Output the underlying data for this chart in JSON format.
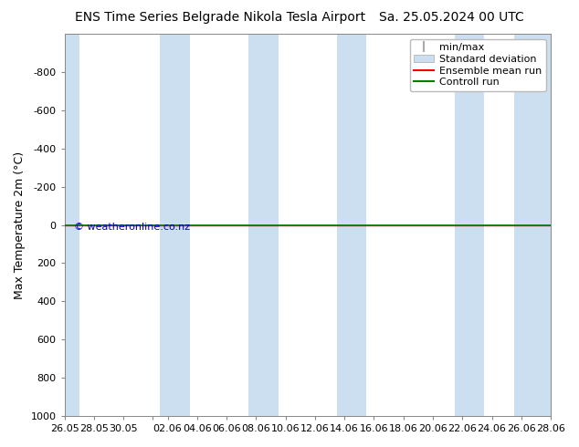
{
  "title_left": "ENS Time Series Belgrade Nikola Tesla Airport",
  "title_right": "Sa. 25.05.2024 00 UTC",
  "ylabel": "Max Temperature 2m (°C)",
  "ylim_top": -1000,
  "ylim_bottom": 1000,
  "yticks": [
    -800,
    -600,
    -400,
    -200,
    0,
    200,
    400,
    600,
    800,
    1000
  ],
  "x_tick_labels": [
    "26.05",
    "28.05",
    "30.05",
    "",
    "02.06",
    "04.06",
    "06.06",
    "08.06",
    "10.06",
    "12.06",
    "14.06",
    "16.06",
    "18.06",
    "20.06",
    "22.06",
    "24.06",
    "26.06",
    "28.06"
  ],
  "tick_positions": [
    0,
    2,
    4,
    6,
    7,
    9,
    11,
    13,
    15,
    17,
    19,
    21,
    23,
    25,
    27,
    29,
    31,
    33
  ],
  "x_min": 0,
  "x_max": 33,
  "background_color": "#ffffff",
  "plot_bg_color": "#ffffff",
  "shade_color": "#ccdff0",
  "shade_bands": [
    [
      0,
      1.0
    ],
    [
      6.5,
      8.5
    ],
    [
      12.5,
      14.5
    ],
    [
      18.5,
      20.5
    ],
    [
      26.5,
      28.5
    ],
    [
      30.5,
      33.0
    ]
  ],
  "green_line_y": 0,
  "red_line_y": 0,
  "legend_labels": [
    "min/max",
    "Standard deviation",
    "Ensemble mean run",
    "Controll run"
  ],
  "legend_colors": [
    "#aaaaaa",
    "#ccdff0",
    "#ff0000",
    "#008000"
  ],
  "watermark": "© weatheronline.co.nz",
  "watermark_color": "#0000cc",
  "font_color": "#000000",
  "title_fontsize": 10,
  "ylabel_fontsize": 9,
  "tick_fontsize": 8,
  "legend_fontsize": 8
}
